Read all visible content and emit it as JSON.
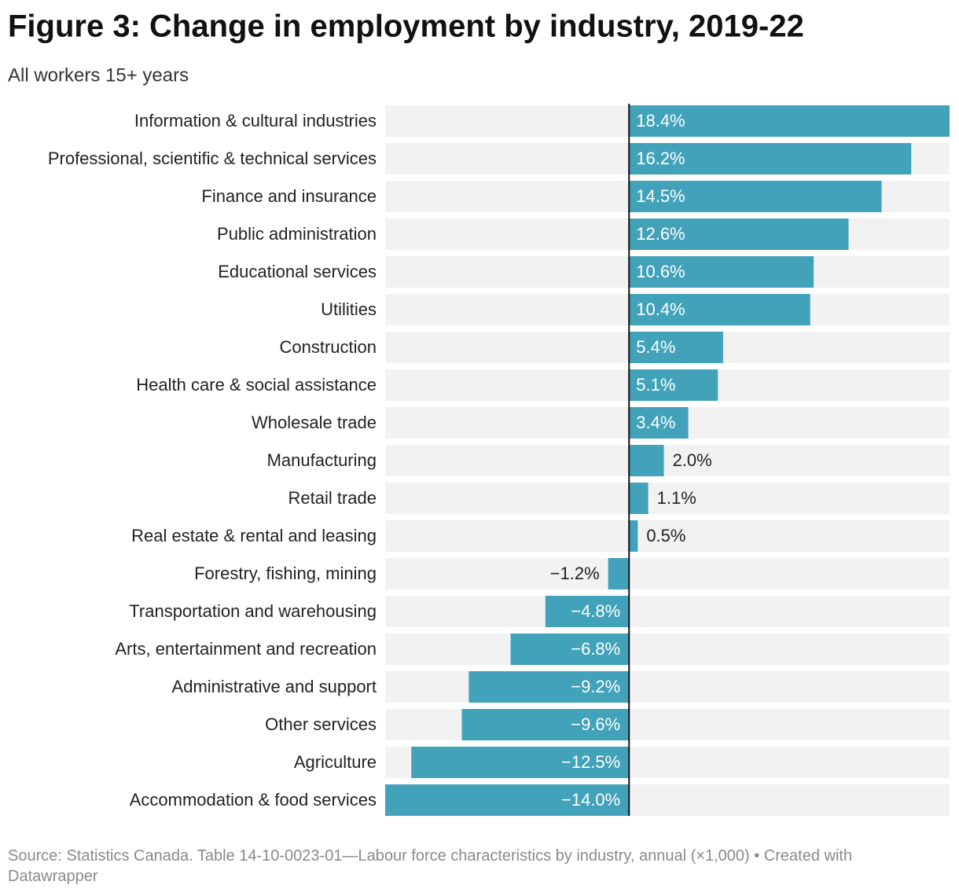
{
  "chart_data": {
    "type": "bar",
    "orientation": "horizontal",
    "title": "Figure 3: Change in employment by industry, 2019-22",
    "subtitle": "All workers 15+ years",
    "source": "Source: Statistics Canada. Table 14-10-0023-01—Labour force characteristics by industry, annual (×1,000) • Created with Datawrapper",
    "categories": [
      "Information & cultural industries",
      "Professional, scientific & technical services",
      "Finance and insurance",
      "Public administration",
      "Educational services",
      "Utilities",
      "Construction",
      "Health care & social assistance",
      "Wholesale trade",
      "Manufacturing",
      "Retail trade",
      "Real estate & rental and leasing",
      "Forestry, fishing, mining",
      "Transportation and warehousing",
      "Arts, entertainment and recreation",
      "Administrative and support",
      "Other services",
      "Agriculture",
      "Accommodation & food services"
    ],
    "values": [
      18.4,
      16.2,
      14.5,
      12.6,
      10.6,
      10.4,
      5.4,
      5.1,
      3.4,
      2.0,
      1.1,
      0.5,
      -1.2,
      -4.8,
      -6.8,
      -9.2,
      -9.6,
      -12.5,
      -14.0
    ],
    "value_labels": [
      "18.4%",
      "16.2%",
      "14.5%",
      "12.6%",
      "10.6%",
      "10.4%",
      "5.4%",
      "5.1%",
      "3.4%",
      "2.0%",
      "1.1%",
      "0.5%",
      "−1.2%",
      "−4.8%",
      "−6.8%",
      "−9.2%",
      "−9.6%",
      "−12.5%",
      "−14.0%"
    ],
    "color": "#41a2b9",
    "xlim": [
      -14.0,
      18.4
    ]
  }
}
